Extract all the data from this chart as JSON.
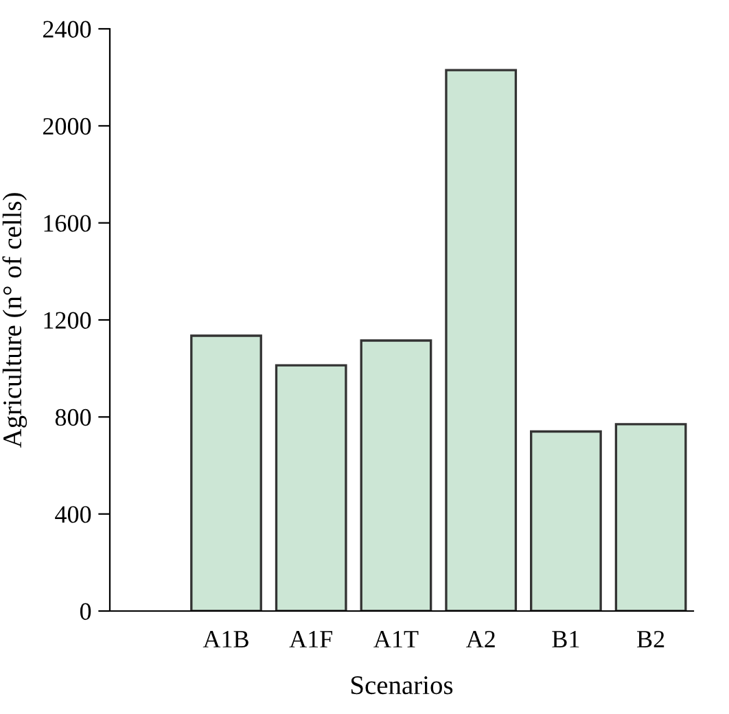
{
  "chart_data": {
    "type": "bar",
    "xlabel": "Scenarios",
    "ylabel": "Agriculture (n° of cells)",
    "categories": [
      "A1B",
      "A1F",
      "A1T",
      "A2",
      "B1",
      "B2"
    ],
    "values": [
      1135,
      1013,
      1115,
      2230,
      740,
      770
    ],
    "color": "#cce6d5",
    "ylim": [
      0,
      2400
    ],
    "yticks": [
      0,
      400,
      800,
      1200,
      1600,
      2000,
      2400
    ],
    "grid": false
  }
}
